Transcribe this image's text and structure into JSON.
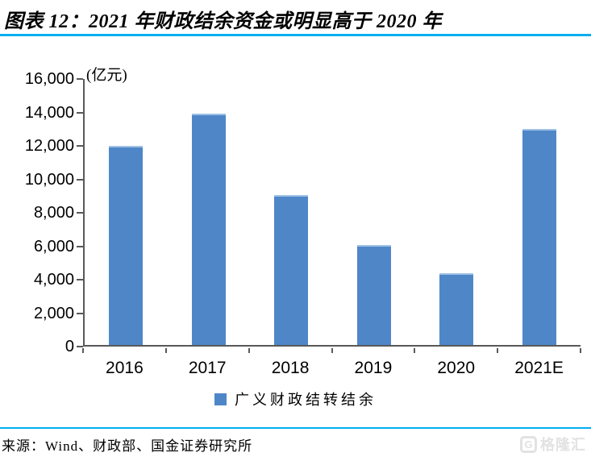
{
  "header": {
    "title": "图表 12：2021 年财政结余资金或明显高于 2020 年"
  },
  "chart_data": {
    "type": "bar",
    "title": "图表 12：2021 年财政结余资金或明显高于 2020 年",
    "unit_label": "(亿元)",
    "categories": [
      "2016",
      "2017",
      "2018",
      "2019",
      "2020",
      "2021E"
    ],
    "series": [
      {
        "name": "广义财政结转结余",
        "values": [
          12000,
          13900,
          9000,
          6000,
          4300,
          13000
        ]
      }
    ],
    "xlabel": "",
    "ylabel": "(亿元)",
    "ylim": [
      0,
      16000
    ],
    "ytick_step": 2000,
    "ytick_labels": [
      "0",
      "2,000",
      "4,000",
      "6,000",
      "8,000",
      "10,000",
      "12,000",
      "14,000",
      "16,000"
    ],
    "grid": false,
    "legend_position": "bottom-center",
    "bar_color": "#4F86C8"
  },
  "legend": {
    "series_label": "广义财政结转结余"
  },
  "footer": {
    "source": "来源：Wind、财政部、国金证券研究所",
    "watermark_logo": "G",
    "watermark_text": "格隆汇"
  },
  "colors": {
    "bar": "#4F86C8",
    "bar_top_edge": "#9EC1E5",
    "accent_line": "#00AEEF",
    "axis": "#595959",
    "text": "#000000",
    "watermark": "#E2E2E2"
  }
}
